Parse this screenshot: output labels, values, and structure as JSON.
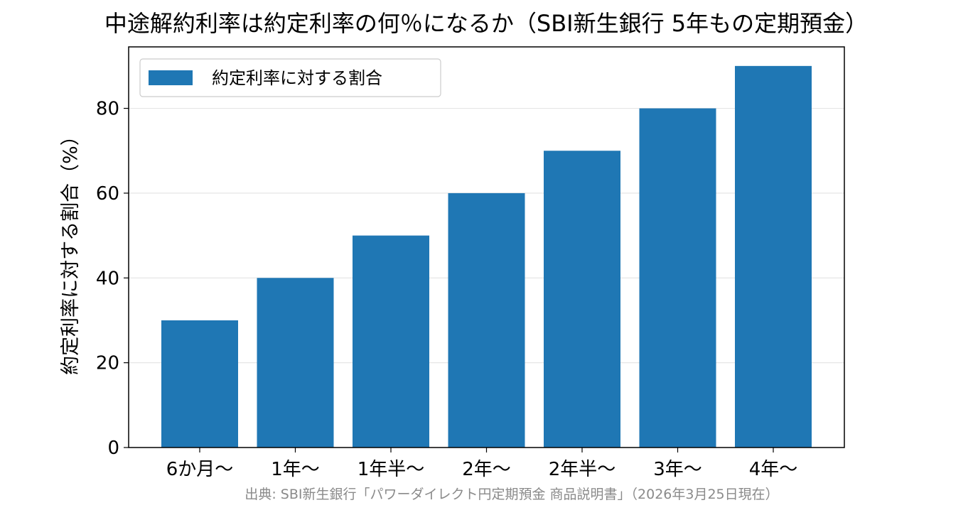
{
  "chart_data": {
    "type": "bar",
    "title": "中途解約利率は約定利率の何％になるか（SBI新生銀行 5年もの定期預金）",
    "ylabel": "約定利率に対する割合（%）",
    "xlabel": "",
    "categories": [
      "6か月〜",
      "1年〜",
      "1年半〜",
      "2年〜",
      "2年半〜",
      "3年〜",
      "4年〜"
    ],
    "series": [
      {
        "name": "約定利率に対する割合",
        "values": [
          30,
          40,
          50,
          60,
          70,
          80,
          90
        ]
      }
    ],
    "ylim": [
      0,
      94.5
    ],
    "yticks": [
      0,
      20,
      40,
      60,
      80
    ],
    "grid": "horizontal",
    "legend": "upper-left",
    "colors": {
      "bar": "#1f77b4",
      "grid": "#e6e6e6",
      "axis": "#000000"
    }
  },
  "source": "出典: SBI新生銀行「パワーダイレクト円定期預金 商品説明書」（2026年3月25日現在）"
}
